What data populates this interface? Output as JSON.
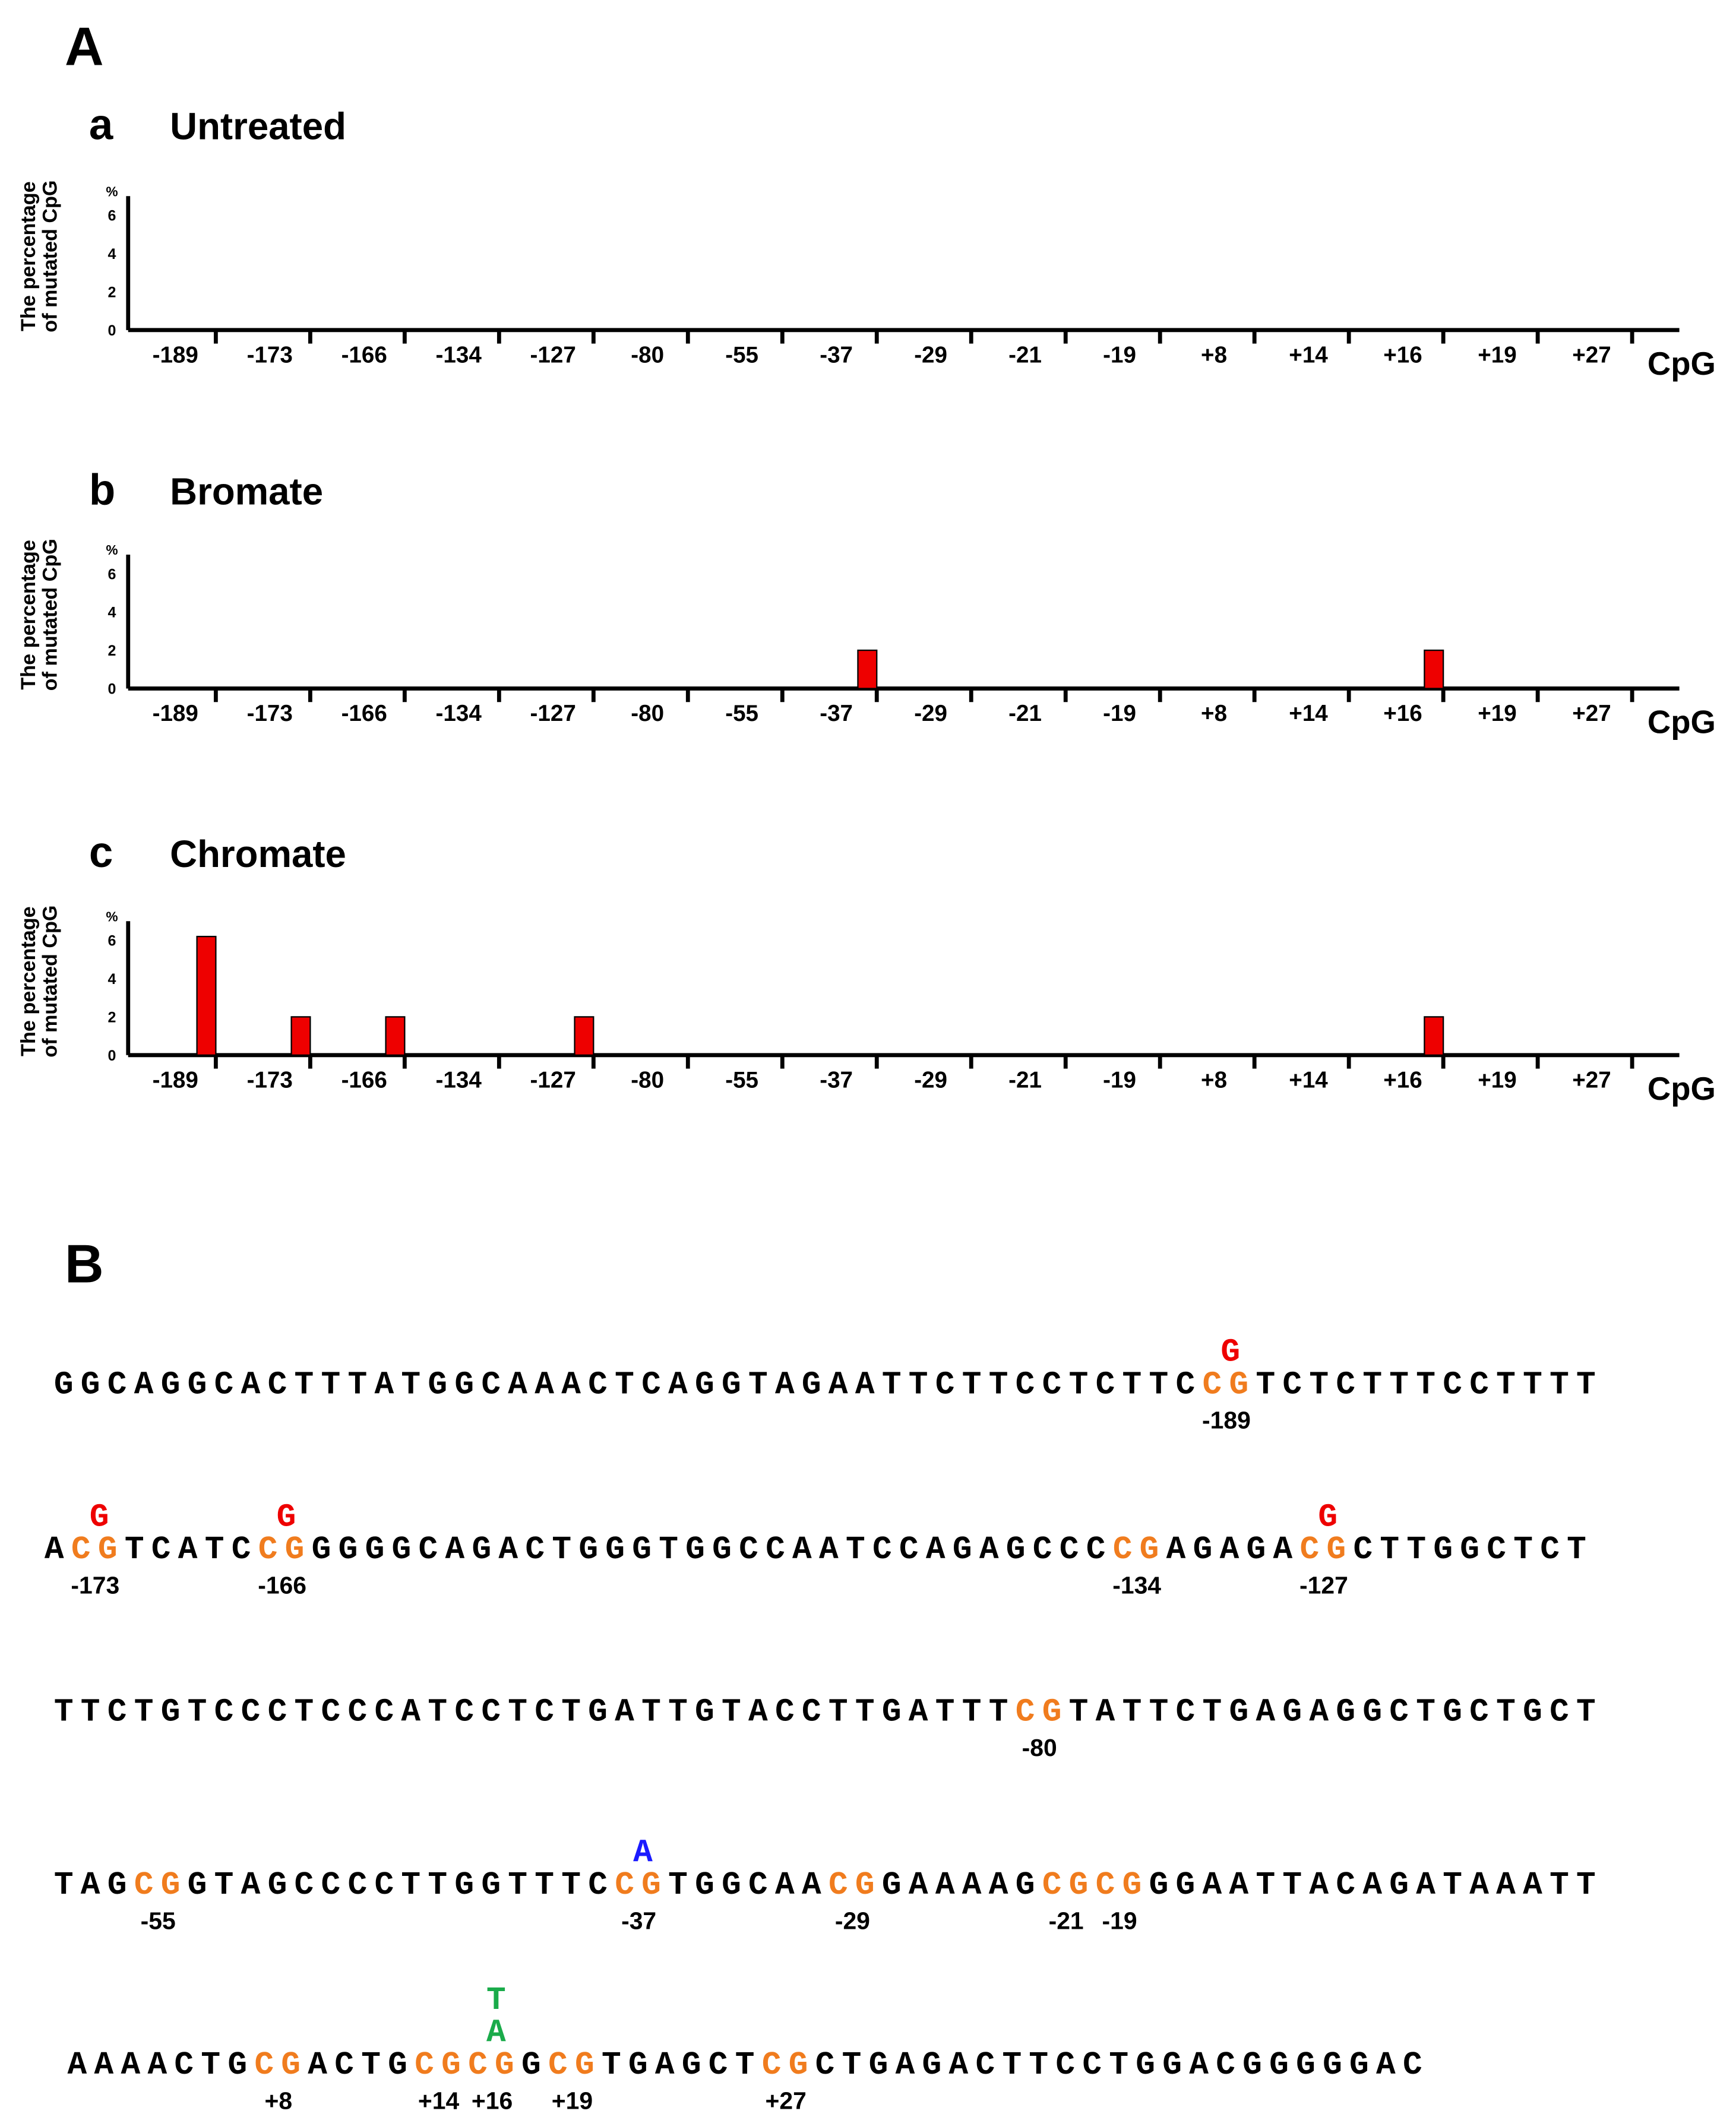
{
  "figure_label": "A",
  "chart_data": [
    {
      "type": "bar",
      "panel": "a",
      "title": "Untreated",
      "ylabel": [
        "The percentage",
        "of mutated CpG"
      ],
      "y_unit": "%",
      "xlabel": "CpG",
      "categories": [
        "-189",
        "-173",
        "-166",
        "-134",
        "-127",
        "-80",
        "-55",
        "-37",
        "-29",
        "-21",
        "-19",
        "+8",
        "+14",
        "+16",
        "+19",
        "+27"
      ],
      "values": [
        0,
        0,
        0,
        0,
        0,
        0,
        0,
        0,
        0,
        0,
        0,
        0,
        0,
        0,
        0,
        0
      ],
      "color": "#ee0000",
      "ylim": [
        0,
        7
      ],
      "yticks": [
        0,
        2,
        4,
        6
      ]
    },
    {
      "type": "bar",
      "panel": "b",
      "title": "Bromate",
      "ylabel": [
        "The percentage",
        "of mutated CpG"
      ],
      "y_unit": "%",
      "xlabel": "CpG",
      "categories": [
        "-189",
        "-173",
        "-166",
        "-134",
        "-127",
        "-80",
        "-55",
        "-37",
        "-29",
        "-21",
        "-19",
        "+8",
        "+14",
        "+16",
        "+19",
        "+27"
      ],
      "values": [
        0,
        0,
        0,
        0,
        0,
        0,
        0,
        2,
        0,
        0,
        0,
        0,
        0,
        2,
        0,
        0
      ],
      "color": "#ee0000",
      "ylim": [
        0,
        7
      ],
      "yticks": [
        0,
        2,
        4,
        6
      ]
    },
    {
      "type": "bar",
      "panel": "c",
      "title": "Chromate",
      "ylabel": [
        "The percentage",
        "of mutated CpG"
      ],
      "y_unit": "%",
      "xlabel": "CpG",
      "categories": [
        "-189",
        "-173",
        "-166",
        "-134",
        "-127",
        "-80",
        "-55",
        "-37",
        "-29",
        "-21",
        "-19",
        "+8",
        "+14",
        "+16",
        "+19",
        "+27"
      ],
      "values": [
        6.2,
        2,
        2,
        0,
        2,
        0,
        0,
        0,
        0,
        0,
        0,
        0,
        0,
        2,
        0,
        0
      ],
      "color": "#ee0000",
      "ylim": [
        0,
        7
      ],
      "yticks": [
        0,
        2,
        4,
        6
      ]
    }
  ],
  "sequence": {
    "label": "B",
    "cpg_color": "#f07c1e",
    "lines": [
      [
        {
          "text": "GGCAGGCACTTTATGGCAAACTCAGGTAGAATTCTTCCTCTTC"
        },
        {
          "text": "CG",
          "position": "-189",
          "mutation": [
            "G"
          ],
          "mutation_color": "#ee0000"
        },
        {
          "text": "TCTCTTTCCTTTT"
        }
      ],
      [
        {
          "text": "A"
        },
        {
          "text": "CG",
          "position": "-173",
          "mutation": [
            "G"
          ],
          "mutation_color": "#ee0000"
        },
        {
          "text": "TCATC"
        },
        {
          "text": "CG",
          "position": "-166",
          "mutation": [
            "G"
          ],
          "mutation_color": "#ee0000"
        },
        {
          "text": "GGGGCAGACTGGGTGGCCAATCCAGAGCCC"
        },
        {
          "text": "CG",
          "position": "-134"
        },
        {
          "text": "AGAGA"
        },
        {
          "text": "CG",
          "position": "-127",
          "mutation": [
            "G"
          ],
          "mutation_color": "#ee0000"
        },
        {
          "text": "CTTGGCTCT"
        }
      ],
      [
        {
          "text": "TTCTGTCCCTCCCATCCTCTGATTGTACCTTGATTT"
        },
        {
          "text": "CG",
          "position": "-80"
        },
        {
          "text": "TATTCTGAGAGGCTGCTGCT"
        }
      ],
      [
        {
          "text": "TAG"
        },
        {
          "text": "CG",
          "position": "-55"
        },
        {
          "text": "GTAGCCCCTTGGTTTC"
        },
        {
          "text": "CG",
          "position": "-37",
          "mutation": [
            "A"
          ],
          "mutation_color": "#1a1aff"
        },
        {
          "text": "TGGCAA"
        },
        {
          "text": "CG",
          "position": "-29"
        },
        {
          "text": "GAAAAG"
        },
        {
          "text": "CG",
          "position": "-21"
        },
        {
          "text": "CG",
          "position": "-19"
        },
        {
          "text": "GGAATTACAGATAAATT"
        }
      ],
      [
        {
          "text": "AAAACTG"
        },
        {
          "text": "CG",
          "position": "+8"
        },
        {
          "text": "ACTG"
        },
        {
          "text": "CG",
          "position": "+14"
        },
        {
          "text": "CG",
          "position": "+16",
          "mutation": [
            "T",
            "A"
          ],
          "mutation_color": "#1aab4a"
        },
        {
          "text": "G"
        },
        {
          "text": "CG",
          "position": "+19"
        },
        {
          "text": "TGAGCT"
        },
        {
          "text": "CG",
          "position": "+27"
        },
        {
          "text": "CTGAGACTTCCTGGACGGGGGAC"
        }
      ]
    ]
  }
}
